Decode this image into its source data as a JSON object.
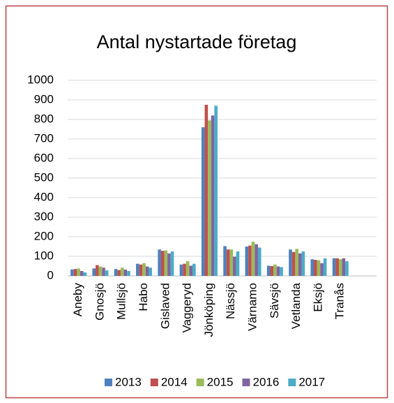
{
  "chart_data": {
    "type": "bar",
    "title": "Antal nystartade företag",
    "categories": [
      "Aneby",
      "Gnosjö",
      "Mullsjö",
      "Habo",
      "Gislaved",
      "Vaggeryd",
      "Jönköping",
      "Nässjö",
      "Värnamo",
      "Sävsjö",
      "Vetlanda",
      "Eksjö",
      "Tranås"
    ],
    "series": [
      {
        "name": "2013",
        "color": "#4f81bd",
        "values": [
          33,
          38,
          35,
          62,
          135,
          58,
          760,
          152,
          150,
          52,
          135,
          85,
          90
        ]
      },
      {
        "name": "2014",
        "color": "#c0504d",
        "values": [
          35,
          55,
          30,
          58,
          128,
          62,
          875,
          135,
          155,
          50,
          122,
          82,
          90
        ]
      },
      {
        "name": "2015",
        "color": "#9bbb59",
        "values": [
          38,
          48,
          42,
          65,
          130,
          75,
          795,
          135,
          175,
          58,
          138,
          80,
          85
        ]
      },
      {
        "name": "2016",
        "color": "#8064a2",
        "values": [
          25,
          42,
          32,
          48,
          115,
          52,
          820,
          98,
          162,
          48,
          115,
          65,
          90
        ]
      },
      {
        "name": "2017",
        "color": "#4bacc6",
        "values": [
          18,
          28,
          25,
          42,
          125,
          62,
          870,
          125,
          145,
          45,
          125,
          90,
          75
        ]
      }
    ],
    "ylim": [
      0,
      1000
    ],
    "yticks": [
      0,
      100,
      200,
      300,
      400,
      500,
      600,
      700,
      800,
      900,
      1000
    ],
    "grid": true,
    "legend": "bottom"
  }
}
